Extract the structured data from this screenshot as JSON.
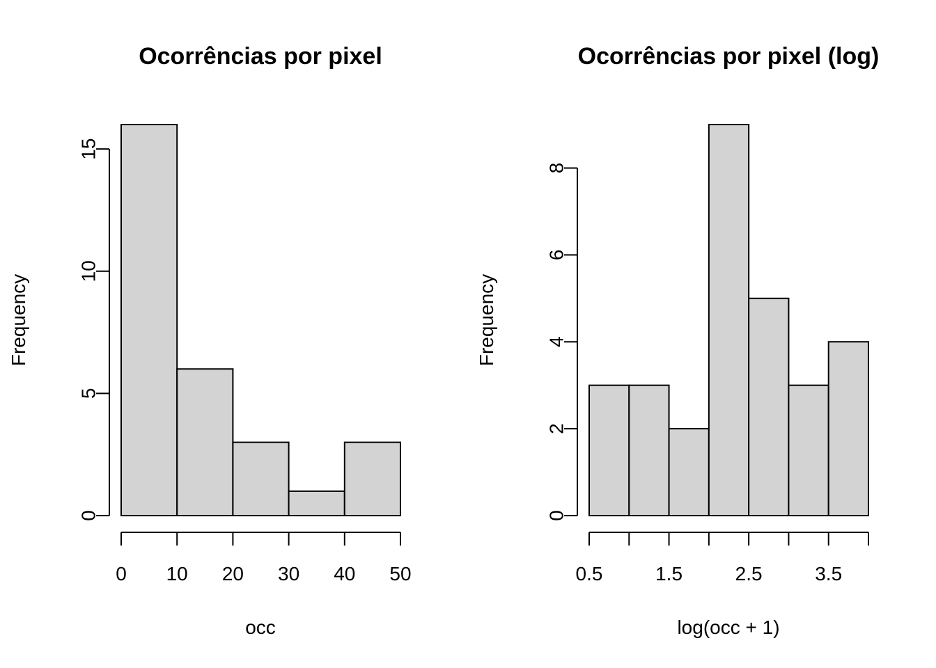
{
  "chart_data": [
    {
      "type": "bar",
      "title": "Ocorrências por pixel",
      "xlabel": "occ",
      "ylabel": "Frequency",
      "bins": [
        [
          0,
          10
        ],
        [
          10,
          20
        ],
        [
          20,
          30
        ],
        [
          30,
          40
        ],
        [
          40,
          50
        ]
      ],
      "values": [
        16,
        6,
        3,
        1,
        3
      ],
      "xlim": [
        0,
        50
      ],
      "ylim": [
        0,
        16
      ],
      "x_ticks": [
        0,
        10,
        20,
        30,
        40,
        50
      ],
      "x_tick_labels": [
        "0",
        "10",
        "20",
        "30",
        "40",
        "50"
      ],
      "y_ticks": [
        0,
        5,
        10,
        15
      ],
      "y_tick_labels": [
        "0",
        "5",
        "10",
        "15"
      ],
      "fill_color": "#d3d3d3",
      "grid": false
    },
    {
      "type": "bar",
      "title": "Ocorrências por pixel (log)",
      "xlabel": "log(occ + 1)",
      "ylabel": "Frequency",
      "bins": [
        [
          0.5,
          1.0
        ],
        [
          1.0,
          1.5
        ],
        [
          1.5,
          2.0
        ],
        [
          2.0,
          2.5
        ],
        [
          2.5,
          3.0
        ],
        [
          3.0,
          3.5
        ],
        [
          3.5,
          4.0
        ]
      ],
      "values": [
        3,
        3,
        2,
        9,
        5,
        3,
        4
      ],
      "xlim": [
        0.5,
        4.0
      ],
      "ylim": [
        0,
        9
      ],
      "x_ticks": [
        0.5,
        1.0,
        1.5,
        2.0,
        2.5,
        3.0,
        3.5,
        4.0
      ],
      "x_tick_labels": [
        "0.5",
        "",
        "1.5",
        "",
        "2.5",
        "",
        "3.5",
        ""
      ],
      "y_ticks": [
        0,
        2,
        4,
        6,
        8
      ],
      "y_tick_labels": [
        "0",
        "2",
        "4",
        "6",
        "8"
      ],
      "fill_color": "#d3d3d3",
      "grid": false
    }
  ]
}
